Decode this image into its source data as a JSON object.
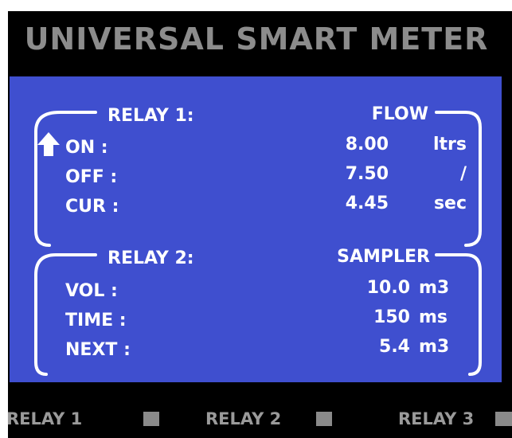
{
  "title": "UNIVERSAL SMART METER",
  "relay1": {
    "heading": "RELAY 1:",
    "mode": "FLOW",
    "rows": [
      {
        "label": "ON :",
        "value": "8.00",
        "unit": "ltrs"
      },
      {
        "label": "OFF :",
        "value": "7.50",
        "unit": "/"
      },
      {
        "label": "CUR :",
        "value": "4.45",
        "unit": "sec"
      }
    ]
  },
  "relay2": {
    "heading": "RELAY 2:",
    "mode": "SAMPLER",
    "rows": [
      {
        "label": "VOL :",
        "value": "10.0",
        "unit": "m3"
      },
      {
        "label": "TIME :",
        "value": "150",
        "unit": "ms"
      },
      {
        "label": "NEXT :",
        "value": "5.4",
        "unit": "m3"
      }
    ]
  },
  "status": [
    "RELAY 1",
    "RELAY 2",
    "RELAY 3"
  ]
}
